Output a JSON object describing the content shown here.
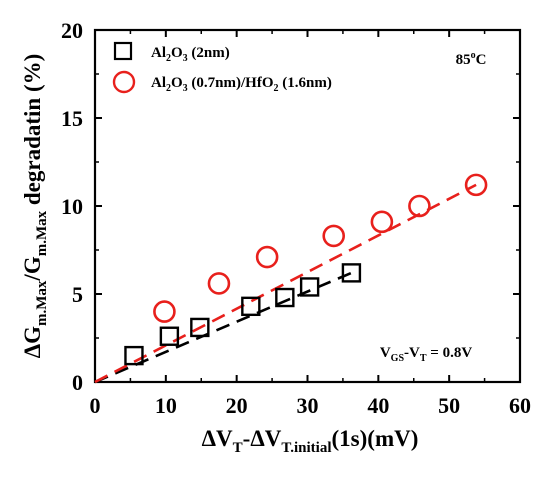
{
  "chart_data": {
    "type": "scatter",
    "ylabel": {
      "p1": "ΔG",
      "s1": "m.Max",
      "p2": "/G",
      "s2": "m.Max",
      "p3": " degradatin (%)"
    },
    "xlabel": {
      "p1": "ΔV",
      "s1": "T",
      "p2": "-ΔV",
      "s2": "T.initial",
      "p3": "(1s)(mV)"
    },
    "xlim": [
      0,
      60
    ],
    "ylim": [
      0,
      20
    ],
    "xticks": [
      0,
      10,
      20,
      30,
      40,
      50,
      60
    ],
    "yticks": [
      0,
      5,
      10,
      15,
      20
    ],
    "x_tick_labels": [
      "0",
      "10",
      "20",
      "30",
      "40",
      "50",
      "60"
    ],
    "y_tick_labels": [
      "0",
      "5",
      "10",
      "15",
      "20"
    ],
    "series": [
      {
        "legend": {
          "p1": "Al",
          "s1": "2",
          "p2": "O",
          "s2": "3",
          "p3": " (2nm)",
          "s3": "",
          "p4": "",
          "s4": "",
          "p5": ""
        },
        "marker": "square",
        "color": "#000000",
        "points": [
          {
            "x": 5.5,
            "y": 1.5
          },
          {
            "x": 10.5,
            "y": 2.6
          },
          {
            "x": 14.8,
            "y": 3.1
          },
          {
            "x": 22.0,
            "y": 4.3
          },
          {
            "x": 26.8,
            "y": 4.8
          },
          {
            "x": 30.3,
            "y": 5.4
          },
          {
            "x": 36.2,
            "y": 6.2
          }
        ],
        "fit": {
          "x": [
            0,
            36.2
          ],
          "y": [
            0,
            6.2
          ]
        }
      },
      {
        "legend": {
          "p1": "Al",
          "s1": "2",
          "p2": "O",
          "s2": "3",
          "p3": " (0.7nm)/HfO",
          "s3": "2",
          "p4": " (1.6nm)",
          "s4": "",
          "p5": ""
        },
        "marker": "circle",
        "color": "#e8201c",
        "points": [
          {
            "x": 9.8,
            "y": 4.0
          },
          {
            "x": 17.5,
            "y": 5.6
          },
          {
            "x": 24.3,
            "y": 7.1
          },
          {
            "x": 33.7,
            "y": 8.3
          },
          {
            "x": 40.5,
            "y": 9.1
          },
          {
            "x": 45.8,
            "y": 10.0
          },
          {
            "x": 53.8,
            "y": 11.2
          }
        ],
        "fit": {
          "x": [
            0,
            53.8
          ],
          "y": [
            0,
            11.2
          ]
        }
      }
    ],
    "annotations": {
      "temperature": {
        "p1": "85",
        "sup": "o",
        "p2": "C"
      },
      "bias": {
        "p1": "V",
        "s1": "GS",
        "p2": "-V",
        "s2": "T",
        "p3": " = 0.8V"
      }
    }
  }
}
